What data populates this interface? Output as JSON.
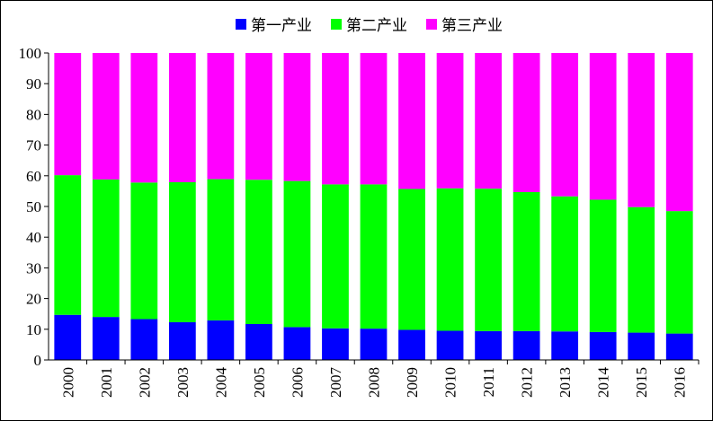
{
  "chart_data": {
    "type": "bar",
    "stacked": true,
    "title": "",
    "xlabel": "",
    "ylabel": "",
    "ylim": [
      0,
      100
    ],
    "yticks": [
      0,
      10,
      20,
      30,
      40,
      50,
      60,
      70,
      80,
      90,
      100
    ],
    "categories": [
      "2000",
      "2001",
      "2002",
      "2003",
      "2004",
      "2005",
      "2006",
      "2007",
      "2008",
      "2009",
      "2010",
      "2011",
      "2012",
      "2013",
      "2014",
      "2015",
      "2016"
    ],
    "legend_position": "top-center",
    "series": [
      {
        "name": "第一产业",
        "color": "#0000ff",
        "values": [
          14.7,
          14.0,
          13.3,
          12.3,
          12.9,
          11.7,
          10.7,
          10.3,
          10.2,
          9.8,
          9.5,
          9.4,
          9.4,
          9.3,
          9.1,
          8.9,
          8.6
        ]
      },
      {
        "name": "第二产业",
        "color": "#00ff00",
        "values": [
          45.5,
          44.8,
          44.5,
          45.6,
          46.0,
          47.0,
          47.6,
          46.9,
          47.0,
          45.9,
          46.4,
          46.4,
          45.3,
          44.0,
          43.1,
          40.9,
          39.9
        ]
      },
      {
        "name": "第三产业",
        "color": "#ff00ff",
        "values": [
          39.8,
          41.2,
          42.2,
          42.1,
          41.1,
          41.3,
          41.7,
          42.8,
          42.8,
          44.3,
          44.1,
          44.2,
          45.3,
          46.7,
          47.8,
          50.2,
          51.5
        ]
      }
    ]
  }
}
